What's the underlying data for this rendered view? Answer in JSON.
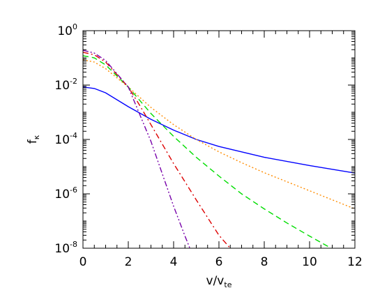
{
  "chart_data": {
    "type": "line",
    "title": "",
    "xlabel": {
      "main": "v/v",
      "sub": "te"
    },
    "ylabel": {
      "main": "f",
      "sub": "κ"
    },
    "xlim": [
      0,
      12
    ],
    "ylim": [
      1e-08,
      1
    ],
    "yscale": "log",
    "grid": false,
    "legend": "none",
    "x_ticks": [
      0,
      2,
      4,
      6,
      8,
      10,
      12
    ],
    "y_ticks": [
      {
        "value": 1e-08,
        "base": "10",
        "exp": "-8"
      },
      {
        "value": 1e-06,
        "base": "10",
        "exp": "-6"
      },
      {
        "value": 0.0001,
        "base": "10",
        "exp": "-4"
      },
      {
        "value": 0.01,
        "base": "10",
        "exp": "-2"
      },
      {
        "value": 1,
        "base": "10",
        "exp": "0"
      }
    ],
    "series": [
      {
        "color": "#0000ff",
        "dash": "solid",
        "points": [
          [
            0,
            0.0085
          ],
          [
            0.5,
            0.0075
          ],
          [
            1,
            0.0052
          ],
          [
            2,
            0.0016
          ],
          [
            3,
            0.00055
          ],
          [
            4,
            0.00022
          ],
          [
            5,
            0.0001
          ],
          [
            6,
            5.5e-05
          ],
          [
            8,
            2.2e-05
          ],
          [
            10,
            1.1e-05
          ],
          [
            12,
            5.8e-06
          ]
        ]
      },
      {
        "color": "#ff8c00",
        "dash": "dotted",
        "points": [
          [
            0,
            0.085
          ],
          [
            0.5,
            0.07
          ],
          [
            1,
            0.04
          ],
          [
            2,
            0.0085
          ],
          [
            3,
            0.0015
          ],
          [
            4,
            0.00035
          ],
          [
            5,
            0.0001
          ],
          [
            6,
            3.5e-05
          ],
          [
            7,
            1.4e-05
          ],
          [
            8,
            6e-06
          ],
          [
            10,
            1.3e-06
          ],
          [
            12,
            2.8e-07
          ]
        ]
      },
      {
        "color": "#00dd00",
        "dash": "dashed",
        "points": [
          [
            0,
            0.12
          ],
          [
            0.5,
            0.1
          ],
          [
            1,
            0.055
          ],
          [
            2,
            0.0085
          ],
          [
            3,
            0.0009
          ],
          [
            4,
            0.00013
          ],
          [
            5,
            2.2e-05
          ],
          [
            6,
            4.5e-06
          ],
          [
            7,
            1e-06
          ],
          [
            8,
            2.8e-07
          ],
          [
            9,
            8.5e-08
          ],
          [
            10,
            2.8e-08
          ],
          [
            11,
            9.5e-09
          ]
        ]
      },
      {
        "color": "#dd0000",
        "dash": "dashdot",
        "points": [
          [
            0,
            0.16
          ],
          [
            0.5,
            0.13
          ],
          [
            1,
            0.07
          ],
          [
            2,
            0.0085
          ],
          [
            2.5,
            0.0018
          ],
          [
            3,
            0.00035
          ],
          [
            4,
            1.3e-05
          ],
          [
            5,
            6e-07
          ],
          [
            6,
            3e-08
          ],
          [
            6.6,
            8e-09
          ]
        ]
      },
      {
        "color": "#7700aa",
        "dash": "dashdotdot",
        "points": [
          [
            0,
            0.19
          ],
          [
            0.5,
            0.15
          ],
          [
            1,
            0.08
          ],
          [
            2,
            0.0085
          ],
          [
            3,
            8.5e-05
          ],
          [
            4,
            3.5e-07
          ],
          [
            4.5,
            2.8e-08
          ],
          [
            4.75,
            8.5e-09
          ]
        ]
      }
    ]
  }
}
